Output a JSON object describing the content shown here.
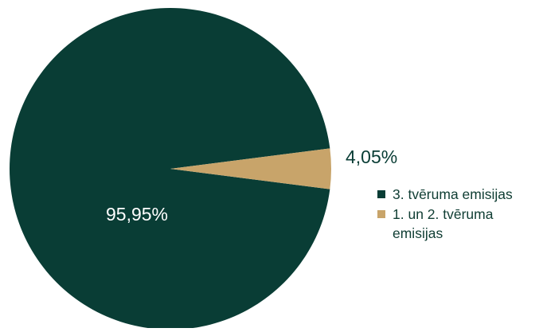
{
  "chart_data": {
    "type": "pie",
    "series": [
      {
        "name": "3. tvēruma emisijas",
        "value": 95.95,
        "label": "95,95%",
        "color": "#093d35"
      },
      {
        "name": "1. un 2. tvēruma emisijas",
        "value": 4.05,
        "label": "4,05%",
        "color": "#c8a46a"
      }
    ],
    "legend_position": "right"
  },
  "colors": {
    "primary": "#093d35",
    "secondary": "#c8a46a",
    "inner_label": "#ffffff",
    "outer_label": "#093d35"
  }
}
